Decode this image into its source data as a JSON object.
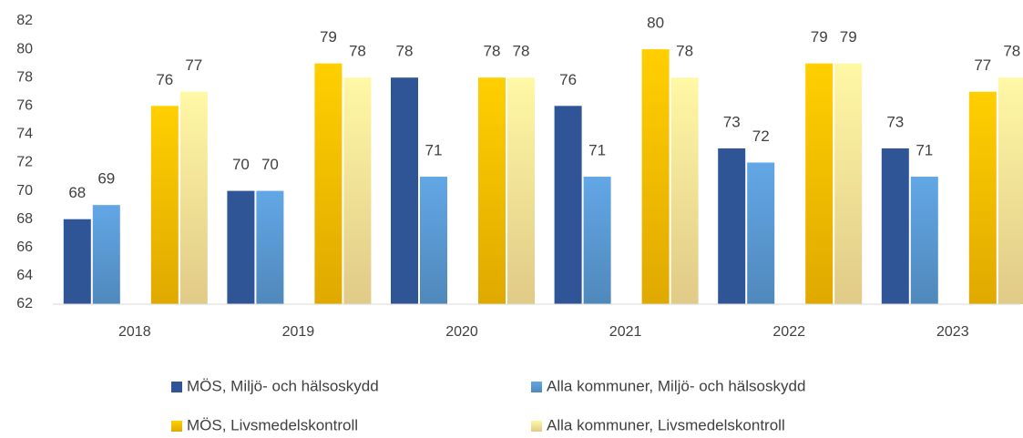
{
  "chart_data": {
    "type": "bar",
    "categories": [
      "2018",
      "2019",
      "2020",
      "2021",
      "2022",
      "2023"
    ],
    "series": [
      {
        "name": "MÖS, Miljö- och hälsoskydd",
        "color": "#2f5597",
        "values": [
          68,
          70,
          78,
          76,
          73,
          73
        ]
      },
      {
        "name": "Alla kommuner, Miljö- och hälsoskydd",
        "color": "#5b9bd5",
        "values": [
          69,
          70,
          71,
          71,
          72,
          71
        ]
      },
      {
        "name": "MÖS, Livsmedelskontroll",
        "color": "#ffc000",
        "values": [
          76,
          79,
          78,
          80,
          79,
          77
        ]
      },
      {
        "name": "Alla kommuner, Livsmedelskontroll",
        "color": "#ffe699",
        "values": [
          77,
          78,
          78,
          78,
          79,
          78
        ]
      }
    ],
    "ylim": [
      62,
      82
    ],
    "yticks": [
      62,
      64,
      66,
      68,
      70,
      72,
      74,
      76,
      78,
      80,
      82
    ],
    "grid": false,
    "legend": "bottom"
  }
}
